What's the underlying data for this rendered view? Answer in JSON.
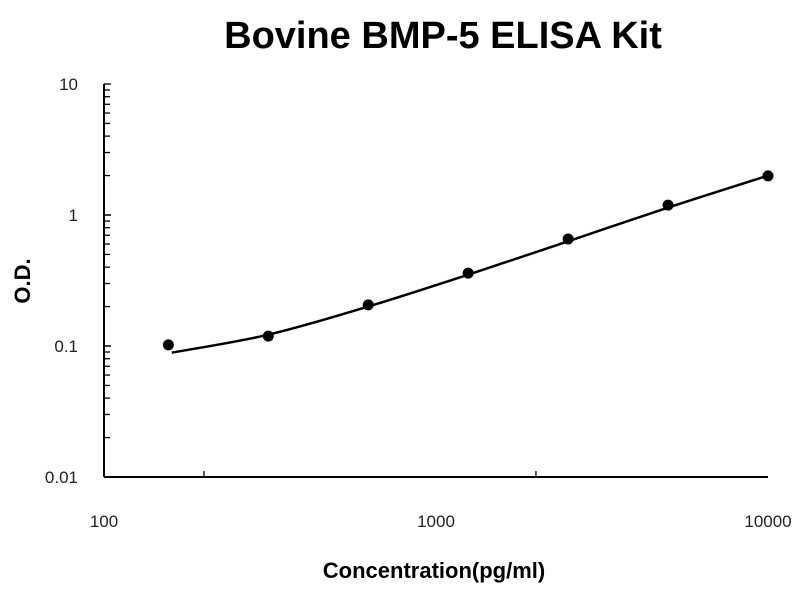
{
  "chart_data": {
    "type": "scatter",
    "title": "Bovine BMP-5 ELISA Kit",
    "xlabel": "Concentration(pg/ml)",
    "ylabel": "O.D.",
    "x_scale": "log",
    "y_scale": "log",
    "xlim": [
      100,
      10000
    ],
    "ylim": [
      0.01,
      10
    ],
    "x_ticks": [
      "100",
      "1000",
      "10000"
    ],
    "y_ticks": [
      "0.01",
      "0.1",
      "1",
      "10"
    ],
    "grid": false,
    "legend": "none",
    "series": [
      {
        "x": [
          156.25,
          312.5,
          625,
          1250,
          2500,
          5000,
          10000
        ],
        "y": [
          0.102,
          0.119,
          0.206,
          0.36,
          0.656,
          1.19,
          1.99
        ]
      }
    ],
    "fit_curve": {
      "x": [
        160,
        312.5,
        625,
        1250,
        2500,
        5000,
        10000
      ],
      "y": [
        0.089,
        0.122,
        0.2,
        0.35,
        0.63,
        1.14,
        2.0
      ]
    },
    "colors": {
      "marks": "#000000"
    }
  }
}
